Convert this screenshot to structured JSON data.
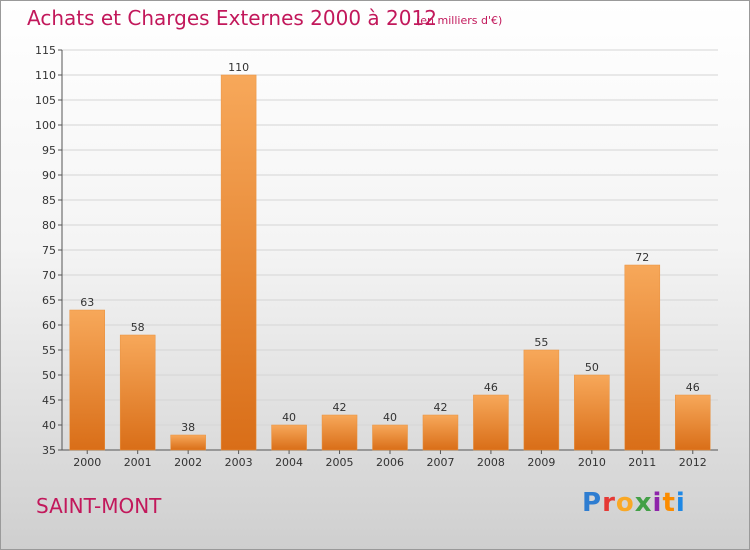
{
  "header": {
    "title": "Achats et Charges Externes 2000 à 2012",
    "unit": "(en milliers d'€)"
  },
  "footer": {
    "commune": "SAINT-MONT",
    "logo_text": "Proxiti",
    "logo_colors": [
      "#2e7dd1",
      "#e53935",
      "#f9a825",
      "#43a047",
      "#8e24aa",
      "#fb8c00",
      "#1e88e5"
    ]
  },
  "chart_data": {
    "type": "bar",
    "title": "Achats et Charges Externes 2000 à 2012",
    "xlabel": "",
    "ylabel": "",
    "categories": [
      "2000",
      "2001",
      "2002",
      "2003",
      "2004",
      "2005",
      "2006",
      "2007",
      "2008",
      "2009",
      "2010",
      "2011",
      "2012"
    ],
    "values": [
      63,
      58,
      38,
      110,
      40,
      42,
      40,
      42,
      46,
      55,
      50,
      72,
      46
    ],
    "ylim": [
      35,
      115
    ],
    "yticks": [
      35,
      40,
      45,
      50,
      55,
      60,
      65,
      70,
      75,
      80,
      85,
      90,
      95,
      100,
      105,
      110,
      115
    ],
    "grid": true,
    "bar_color_top": "#f7a85a",
    "bar_color_bottom": "#d96e18"
  }
}
